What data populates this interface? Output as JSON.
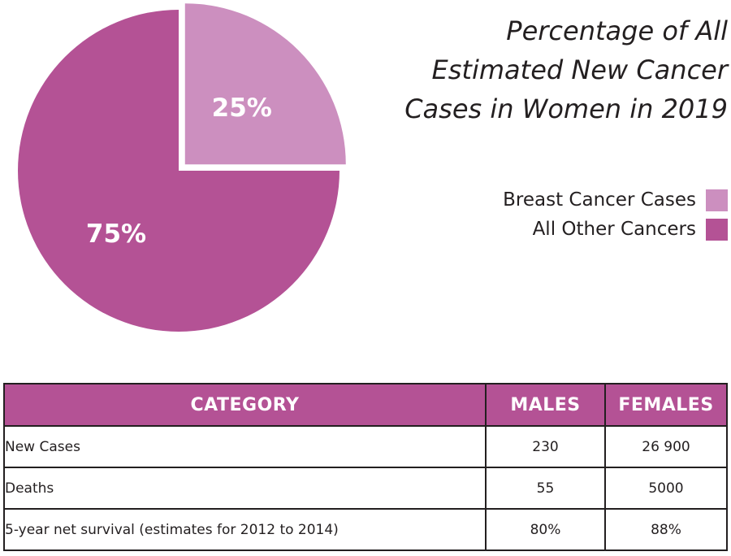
{
  "colors": {
    "breast": "#cc8fbf",
    "other": "#b45295",
    "header_bg": "#b45295",
    "header_text": "#ffffff",
    "text": "#231f20"
  },
  "chart_data": {
    "type": "pie",
    "title": [
      "Percentage of All",
      "Estimated New Cancer",
      "Cases in Women in 2019"
    ],
    "slices": [
      {
        "name": "Breast Cancer Cases",
        "value": 25,
        "label": "25%",
        "color": "#cc8fbf",
        "exploded": true
      },
      {
        "name": "All Other Cancers",
        "value": 75,
        "label": "75%",
        "color": "#b45295",
        "exploded": false
      }
    ],
    "legend_position": "right"
  },
  "table": {
    "headers": [
      "CATEGORY",
      "MALES",
      "FEMALES"
    ],
    "rows": [
      [
        "New Cases",
        "230",
        "26 900"
      ],
      [
        "Deaths",
        "55",
        "5000"
      ],
      [
        "5-year net survival (estimates for 2012 to 2014)",
        "80%",
        "88%"
      ]
    ]
  }
}
